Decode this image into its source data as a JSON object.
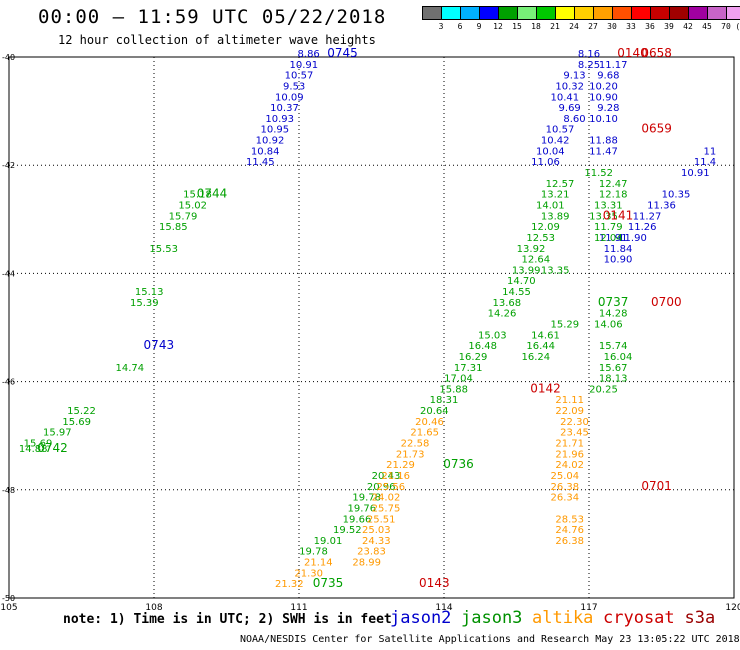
{
  "header": {
    "title": "00:00 – 11:59 UTC 05/22/2018",
    "subtitle": "12 hour collection of altimeter wave heights"
  },
  "colorbar": {
    "colors": [
      "#707070",
      "#00ffff",
      "#00b0ff",
      "#0000ff",
      "#00a000",
      "#78f078",
      "#00c800",
      "#ffff00",
      "#ffd000",
      "#ffa000",
      "#ff5000",
      "#ff0000",
      "#c80000",
      "#a00000",
      "#a000a0",
      "#c864c8",
      "#f0a0f0",
      "#000000"
    ],
    "labels": [
      "3",
      "6",
      "9",
      "12",
      "15",
      "18",
      "21",
      "24",
      "27",
      "30",
      "33",
      "36",
      "39",
      "42",
      "45",
      "70",
      "(ft)"
    ]
  },
  "chart_data": {
    "type": "scatter",
    "title": "00:00 – 11:59 UTC 05/22/2018",
    "subtitle": "12 hour collection of altimeter wave heights",
    "xaxis": {
      "range": [
        105,
        120
      ],
      "ticks": [
        "105",
        "108",
        "111",
        "114",
        "117",
        "120"
      ]
    },
    "yaxis": {
      "range": [
        -50,
        -40
      ],
      "ticks": [
        "-40",
        "-42",
        "-44",
        "-46",
        "-48",
        "-50"
      ]
    },
    "grid": true,
    "series": [
      {
        "name": "jason2",
        "color": "#0000cc",
        "points": [
          [
            111.2,
            -40.0,
            "8.86"
          ],
          [
            111.1,
            -40.2,
            "10.91"
          ],
          [
            111.0,
            -40.4,
            "10.57"
          ],
          [
            110.9,
            -40.6,
            "9.53"
          ],
          [
            110.8,
            -40.8,
            "10.09"
          ],
          [
            110.7,
            -41.0,
            "10.37"
          ],
          [
            110.6,
            -41.2,
            "10.93"
          ],
          [
            110.5,
            -41.4,
            "10.95"
          ],
          [
            110.4,
            -41.6,
            "10.92"
          ],
          [
            110.3,
            -41.8,
            "10.84"
          ],
          [
            110.2,
            -42.0,
            "11.45"
          ],
          [
            117.0,
            -40.0,
            "8.16"
          ],
          [
            117.0,
            -40.2,
            "8.25"
          ],
          [
            117.5,
            -40.2,
            "11.17"
          ],
          [
            116.7,
            -40.4,
            "9.13"
          ],
          [
            117.4,
            -40.4,
            "9.68"
          ],
          [
            116.6,
            -40.6,
            "10.32"
          ],
          [
            117.3,
            -40.6,
            "10.20"
          ],
          [
            116.5,
            -40.8,
            "10.41"
          ],
          [
            117.3,
            -40.8,
            "10.90"
          ],
          [
            116.6,
            -41.0,
            "9.69"
          ],
          [
            117.4,
            -41.0,
            "9.28"
          ],
          [
            116.7,
            -41.2,
            "8.60"
          ],
          [
            117.3,
            -41.2,
            "10.10"
          ],
          [
            116.4,
            -41.4,
            "10.57"
          ],
          [
            116.3,
            -41.6,
            "10.42"
          ],
          [
            117.3,
            -41.6,
            "11.88"
          ],
          [
            116.2,
            -41.8,
            "10.04"
          ],
          [
            117.3,
            -41.8,
            "11.47"
          ],
          [
            116.1,
            -42.0,
            "11.06"
          ],
          [
            119.5,
            -41.8,
            "11"
          ],
          [
            119.4,
            -42.0,
            "11.4"
          ],
          [
            119.2,
            -42.2,
            "10.91"
          ],
          [
            118.8,
            -42.6,
            "10.35"
          ],
          [
            118.5,
            -42.8,
            "11.36"
          ],
          [
            118.2,
            -43.0,
            "11.27"
          ],
          [
            118.1,
            -43.2,
            "11.26"
          ],
          [
            117.9,
            -43.4,
            "11.90"
          ],
          [
            117.5,
            -43.4,
            "11.91"
          ],
          [
            117.6,
            -43.6,
            "11.84"
          ],
          [
            117.6,
            -43.8,
            "10.90"
          ],
          [
            108.1,
            -45.4,
            "0743"
          ]
        ]
      },
      {
        "name": "jason3",
        "color": "#00a000",
        "points": [
          [
            109.2,
            -42.6,
            "0744"
          ],
          [
            108.9,
            -42.6,
            "15.18"
          ],
          [
            108.8,
            -42.8,
            "15.02"
          ],
          [
            108.6,
            -43.0,
            "15.79"
          ],
          [
            108.4,
            -43.2,
            "15.85"
          ],
          [
            108.2,
            -43.6,
            "15.53"
          ],
          [
            107.9,
            -44.4,
            "15.13"
          ],
          [
            107.8,
            -44.6,
            "15.39"
          ],
          [
            107.5,
            -45.8,
            "14.74"
          ],
          [
            106.5,
            -46.6,
            "15.22"
          ],
          [
            106.4,
            -46.8,
            "15.69"
          ],
          [
            106.0,
            -47.0,
            "15.97"
          ],
          [
            105.6,
            -47.2,
            "15.69"
          ],
          [
            105.5,
            -47.3,
            "14.88"
          ],
          [
            117.2,
            -42.2,
            "11.52"
          ],
          [
            116.4,
            -42.4,
            "12.57"
          ],
          [
            116.3,
            -42.6,
            "13.21"
          ],
          [
            116.2,
            -42.8,
            "14.01"
          ],
          [
            116.3,
            -43.0,
            "13.89"
          ],
          [
            116.1,
            -43.2,
            "12.09"
          ],
          [
            116.0,
            -43.4,
            "12.53"
          ],
          [
            115.8,
            -43.6,
            "13.92"
          ],
          [
            115.9,
            -43.8,
            "12.64"
          ],
          [
            115.7,
            -44.0,
            "13.99"
          ],
          [
            115.6,
            -44.2,
            "14.70"
          ],
          [
            115.5,
            -44.4,
            "14.55"
          ],
          [
            115.3,
            -44.6,
            "13.68"
          ],
          [
            115.2,
            -44.8,
            "14.26"
          ],
          [
            115.0,
            -45.2,
            "15.03"
          ],
          [
            114.8,
            -45.4,
            "16.48"
          ],
          [
            114.6,
            -45.6,
            "16.29"
          ],
          [
            114.5,
            -45.8,
            "17.31"
          ],
          [
            114.3,
            -46.0,
            "17.04"
          ],
          [
            114.2,
            -46.2,
            "15.88"
          ],
          [
            114.0,
            -46.4,
            "18.31"
          ],
          [
            113.8,
            -46.6,
            "20.64"
          ],
          [
            117.5,
            -42.4,
            "12.47"
          ],
          [
            117.5,
            -42.6,
            "12.18"
          ],
          [
            117.4,
            -42.8,
            "13.31"
          ],
          [
            117.3,
            -43.0,
            "13.35"
          ],
          [
            117.4,
            -43.2,
            "11.79"
          ],
          [
            117.4,
            -43.4,
            "12.04"
          ],
          [
            117.5,
            -44.8,
            "14.28"
          ],
          [
            117.4,
            -45.0,
            "14.06"
          ],
          [
            117.5,
            -45.4,
            "15.74"
          ],
          [
            117.6,
            -45.6,
            "16.04"
          ],
          [
            117.5,
            -45.8,
            "15.67"
          ],
          [
            117.5,
            -46.0,
            "18.13"
          ],
          [
            117.3,
            -46.2,
            "20.25"
          ],
          [
            116.3,
            -44.0,
            "13.35"
          ],
          [
            116.5,
            -45.0,
            "15.29"
          ],
          [
            116.1,
            -45.2,
            "14.61"
          ],
          [
            116.0,
            -45.4,
            "16.44"
          ],
          [
            115.9,
            -45.6,
            "16.24"
          ],
          [
            112.8,
            -47.8,
            "20.43"
          ],
          [
            112.7,
            -48.0,
            "20.96"
          ],
          [
            112.4,
            -48.2,
            "19.78"
          ],
          [
            112.3,
            -48.4,
            "19.76"
          ],
          [
            112.2,
            -48.6,
            "19.66"
          ],
          [
            112.0,
            -48.8,
            "19.52"
          ],
          [
            111.6,
            -49.0,
            "19.01"
          ],
          [
            111.3,
            -49.2,
            "19.78"
          ],
          [
            114.3,
            -47.6,
            "0736"
          ],
          [
            117.5,
            -44.6,
            "0737"
          ]
        ]
      },
      {
        "name": "altika",
        "color": "#ff9900",
        "points": [
          [
            116.6,
            -46.4,
            "21.11"
          ],
          [
            116.6,
            -46.6,
            "22.09"
          ],
          [
            116.7,
            -46.8,
            "22.30"
          ],
          [
            116.7,
            -47.0,
            "23.45"
          ],
          [
            116.6,
            -47.2,
            "21.71"
          ],
          [
            116.6,
            -47.4,
            "21.96"
          ],
          [
            116.6,
            -47.6,
            "24.02"
          ],
          [
            116.5,
            -47.8,
            "25.04"
          ],
          [
            116.5,
            -48.0,
            "26.38"
          ],
          [
            116.5,
            -48.2,
            "26.34"
          ],
          [
            116.6,
            -48.6,
            "28.53"
          ],
          [
            116.6,
            -48.8,
            "24.76"
          ],
          [
            116.6,
            -49.0,
            "26.38"
          ],
          [
            113.7,
            -46.8,
            "20.46"
          ],
          [
            113.6,
            -47.0,
            "21.65"
          ],
          [
            113.4,
            -47.2,
            "22.58"
          ],
          [
            113.3,
            -47.4,
            "21.73"
          ],
          [
            113.1,
            -47.6,
            "21.29"
          ],
          [
            113.0,
            -47.8,
            "21.16"
          ],
          [
            112.9,
            -48.0,
            "25.56"
          ],
          [
            112.8,
            -48.2,
            "24.02"
          ],
          [
            112.8,
            -48.4,
            "25.75"
          ],
          [
            112.7,
            -48.6,
            "25.51"
          ],
          [
            112.6,
            -48.8,
            "25.03"
          ],
          [
            112.6,
            -49.0,
            "24.33"
          ],
          [
            112.5,
            -49.2,
            "23.83"
          ],
          [
            112.4,
            -49.4,
            "28.99"
          ],
          [
            111.4,
            -49.4,
            "21.14"
          ],
          [
            111.2,
            -49.6,
            "21.30"
          ],
          [
            110.8,
            -49.8,
            "21.32"
          ]
        ]
      },
      {
        "name": "cryosat",
        "color": "#cc0000",
        "points": [
          [
            117.9,
            -40.0,
            "0140"
          ],
          [
            118.4,
            -40.0,
            "0658"
          ],
          [
            118.4,
            -41.4,
            "0659"
          ],
          [
            117.6,
            -43.0,
            "0141"
          ],
          [
            118.6,
            -44.6,
            "0700"
          ],
          [
            116.1,
            -46.2,
            "0142"
          ],
          [
            118.4,
            -48.0,
            "0701"
          ],
          [
            113.8,
            -49.8,
            "0143"
          ]
        ]
      },
      {
        "name": "s3a",
        "color": "#990000",
        "points": []
      }
    ]
  },
  "annotations": {
    "pass_labels": [
      {
        "text": "0745",
        "color": "#0000cc",
        "lon": 111.9,
        "lat": -40.0
      },
      {
        "text": "0742",
        "color": "#00a000",
        "lon": 105.9,
        "lat": -47.3
      },
      {
        "text": "0735",
        "color": "#00a000",
        "lon": 111.6,
        "lat": -49.8
      }
    ]
  },
  "legend": {
    "note": "note: 1) Time is in UTC; 2) SWH is in feet",
    "items": [
      {
        "label": "jason2",
        "color": "#0000cc"
      },
      {
        "label": "jason3",
        "color": "#009000"
      },
      {
        "label": "altika",
        "color": "#ff9900"
      },
      {
        "label": "cryosat",
        "color": "#cc0000"
      },
      {
        "label": "s3a",
        "color": "#990000"
      }
    ]
  },
  "footer": "NOAA/NESDIS Center for Satellite Applications and Research   May 23 13:05:22 UTC 2018"
}
